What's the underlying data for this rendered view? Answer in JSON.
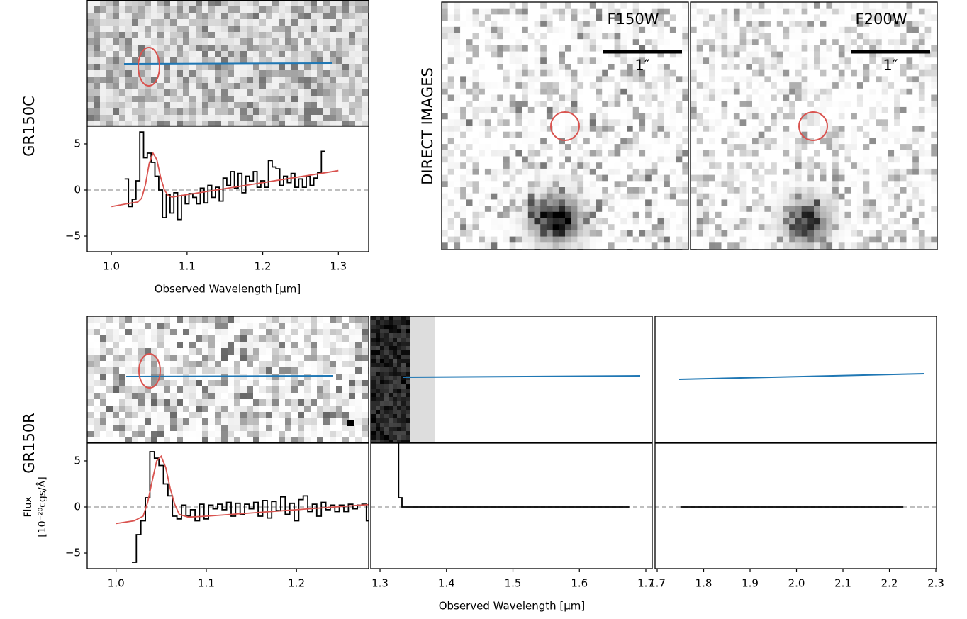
{
  "labels": {
    "gr150c": "GR150C",
    "gr150r": "GR150R",
    "direct": "DIRECT IMAGES",
    "f150w": "F150W",
    "f200w": "F200W",
    "scale": "1″"
  },
  "chart_data": [
    {
      "type": "line",
      "xlabel": "Observed Wavelength [µm]",
      "xlim": [
        0.968,
        1.34
      ],
      "ylim": [
        -6.69,
        6.92
      ],
      "xticks": [
        {
          "value": 1,
          "label": "1.0"
        },
        1.1,
        1.2,
        1.3
      ],
      "yticks": [
        {
          "value": -5,
          "label": "−5"
        },
        0,
        5
      ],
      "zero_line": true,
      "series": [
        {
          "color": "#000000",
          "drawstyle": "steps-mid",
          "x": [
            1.02,
            1.025,
            1.03,
            1.035,
            1.04,
            1.045,
            1.05,
            1.055,
            1.06,
            1.065,
            1.07,
            1.075,
            1.08,
            1.085,
            1.09,
            1.095,
            1.1,
            1.105,
            1.11,
            1.115,
            1.12,
            1.125,
            1.13,
            1.135,
            1.14,
            1.145,
            1.15,
            1.155,
            1.16,
            1.165,
            1.17,
            1.175,
            1.18,
            1.185,
            1.19,
            1.195,
            1.2,
            1.205,
            1.21,
            1.215,
            1.22,
            1.225,
            1.23,
            1.235,
            1.24,
            1.245,
            1.25,
            1.255,
            1.26,
            1.265,
            1.27,
            1.275,
            1.28
          ],
          "values": [
            1.2,
            -1.8,
            -1.0,
            1.0,
            6.3,
            3.5,
            4.0,
            3.0,
            1.5,
            0.0,
            -3.0,
            -0.5,
            -2.5,
            -0.3,
            -3.2,
            -0.6,
            -1.5,
            -0.4,
            -0.8,
            -1.5,
            0.2,
            -1.4,
            0.5,
            -0.8,
            0.3,
            -1.2,
            1.3,
            0.5,
            2.0,
            0.2,
            1.8,
            -0.3,
            1.5,
            1.0,
            2.0,
            0.3,
            1.0,
            0.3,
            3.2,
            2.5,
            2.3,
            0.5,
            1.5,
            0.8,
            1.8,
            0.3,
            1.2,
            0.3,
            1.5,
            0.5,
            1.3,
            1.9,
            4.2
          ]
        },
        {
          "color": "#d9534f",
          "drawstyle": "default",
          "x": [
            1.0,
            1.02,
            1.035,
            1.04,
            1.045,
            1.05,
            1.055,
            1.06,
            1.065,
            1.07,
            1.075,
            1.08,
            1.1,
            1.2,
            1.3
          ],
          "values": [
            -1.8,
            -1.5,
            -1.3,
            -0.9,
            0.6,
            2.9,
            4.0,
            3.3,
            1.4,
            0.0,
            -0.6,
            -0.76,
            -0.5,
            0.8,
            2.1
          ]
        }
      ]
    },
    {
      "type": "line",
      "ylabel": [
        "Flux",
        "[10⁻²⁰cgs/Å]"
      ],
      "xlim": [
        0.968,
        1.28
      ],
      "ylim": [
        -6.69,
        6.92
      ],
      "xticks": [
        {
          "value": 1,
          "label": "1.0"
        },
        1.1,
        1.2
      ],
      "yticks": [
        {
          "value": -5,
          "label": "−5"
        },
        0,
        5
      ],
      "zero_line": true,
      "series": [
        {
          "color": "#000000",
          "drawstyle": "steps-mid",
          "x": [
            1.02,
            1.025,
            1.03,
            1.035,
            1.04,
            1.045,
            1.05,
            1.055,
            1.06,
            1.065,
            1.07,
            1.075,
            1.08,
            1.085,
            1.09,
            1.095,
            1.1,
            1.105,
            1.11,
            1.115,
            1.12,
            1.125,
            1.13,
            1.135,
            1.14,
            1.145,
            1.15,
            1.155,
            1.16,
            1.165,
            1.17,
            1.175,
            1.18,
            1.185,
            1.19,
            1.195,
            1.2,
            1.205,
            1.21,
            1.215,
            1.22,
            1.225,
            1.23,
            1.235,
            1.24,
            1.245,
            1.25,
            1.255,
            1.26,
            1.265,
            1.27,
            1.275,
            1.28
          ],
          "values": [
            -6.0,
            -3.0,
            -1.5,
            1.0,
            6.0,
            5.3,
            4.5,
            2.5,
            1.2,
            -1.0,
            -1.3,
            0.2,
            -1.0,
            -0.3,
            -1.5,
            0.3,
            -1.3,
            0.2,
            -0.2,
            0.3,
            -0.3,
            0.5,
            -1.0,
            0.4,
            -0.8,
            0.3,
            -0.2,
            0.5,
            -1.0,
            0.7,
            -1.2,
            0.6,
            -0.4,
            1.1,
            -0.8,
            0.4,
            -1.5,
            0.8,
            1.2,
            -0.5,
            0.3,
            -1.0,
            0.5,
            -0.3,
            0.2,
            -0.5,
            0.2,
            -0.5,
            0.3,
            -0.2,
            0.2,
            0.3,
            -1.5
          ]
        },
        {
          "color": "#d9534f",
          "drawstyle": "default",
          "x": [
            1.0,
            1.02,
            1.03,
            1.035,
            1.04,
            1.045,
            1.05,
            1.055,
            1.06,
            1.065,
            1.07,
            1.08,
            1.1,
            1.2,
            1.3
          ],
          "values": [
            -1.8,
            -1.5,
            -1.0,
            0.5,
            2.8,
            5.0,
            5.5,
            4.3,
            2.0,
            0.3,
            -0.8,
            -1.1,
            -1.0,
            -0.3,
            0.4
          ]
        }
      ]
    },
    {
      "type": "line",
      "xlim": [
        1.2861,
        1.7096
      ],
      "ylim": [
        -6.69,
        6.92
      ],
      "xticks": [
        1.3,
        1.4,
        1.5,
        1.6,
        1.7
      ],
      "zero_line": true,
      "series": [
        {
          "color": "#000000",
          "drawstyle": "default",
          "x": [
            1.328,
            1.328,
            1.333,
            1.333,
            1.675
          ],
          "values": [
            8,
            1,
            1,
            0,
            0
          ]
        }
      ]
    },
    {
      "type": "line",
      "xlabel": "Observed Wavelength [µm]",
      "xlim": [
        1.6954,
        2.3015
      ],
      "ylim": [
        -6.69,
        6.92
      ],
      "xticks": [
        1.7,
        1.8,
        1.9,
        {
          "value": 2,
          "label": "2.0"
        },
        2.1,
        2.2,
        2.3
      ],
      "zero_line": true,
      "series": [
        {
          "color": "#000000",
          "drawstyle": "default",
          "x": [
            1.75,
            2.23
          ],
          "values": [
            0,
            0
          ]
        }
      ]
    }
  ]
}
